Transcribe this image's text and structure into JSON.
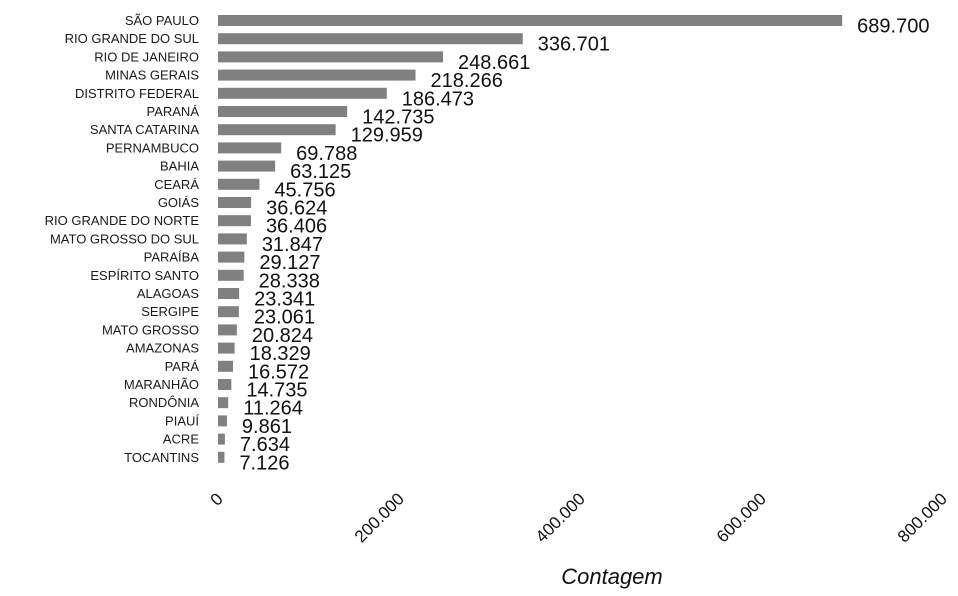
{
  "chart_data": {
    "type": "bar",
    "orientation": "horizontal",
    "title": "",
    "xlabel": "Contagem",
    "ylabel": "",
    "xlim": [
      0,
      800000
    ],
    "grid": false,
    "bar_color": "#808080",
    "categories": [
      "SÃO PAULO",
      "RIO GRANDE DO SUL",
      "RIO DE JANEIRO",
      "MINAS GERAIS",
      "DISTRITO FEDERAL",
      "PARANÁ",
      "SANTA CATARINA",
      "PERNAMBUCO",
      "BAHIA",
      "CEARÁ",
      "GOIÁS",
      "RIO GRANDE DO NORTE",
      "MATO GROSSO DO SUL",
      "PARAÍBA",
      "ESPÍRITO SANTO",
      "ALAGOAS",
      "SERGIPE",
      "MATO GROSSO",
      "AMAZONAS",
      "PARÁ",
      "MARANHÃO",
      "RONDÔNIA",
      "PIAUÍ",
      "ACRE",
      "TOCANTINS"
    ],
    "values": [
      689700,
      336701,
      248661,
      218266,
      186473,
      142735,
      129959,
      69788,
      63125,
      45756,
      36624,
      36406,
      31847,
      29127,
      28338,
      23341,
      23061,
      20824,
      18329,
      16572,
      14735,
      11264,
      9861,
      7634,
      7126
    ],
    "value_labels": [
      "689.700",
      "336.701",
      "248.661",
      "218.266",
      "186.473",
      "142.735",
      "129.959",
      "69.788",
      "63.125",
      "45.756",
      "36.624",
      "36.406",
      "31.847",
      "29.127",
      "28.338",
      "23.341",
      "23.061",
      "20.824",
      "18.329",
      "16.572",
      "14.735",
      "11.264",
      "9.861",
      "7.634",
      "7.126"
    ],
    "x_ticks": [
      0,
      200000,
      400000,
      600000,
      800000
    ],
    "x_tick_labels": [
      "0",
      "200.000",
      "400.000",
      "600.000",
      "800.000"
    ]
  }
}
